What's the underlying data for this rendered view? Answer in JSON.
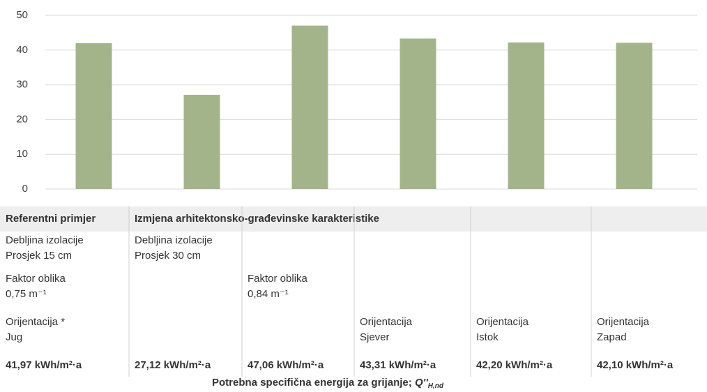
{
  "chart_data": {
    "type": "bar",
    "values": [
      41.97,
      27.12,
      47.06,
      43.31,
      42.2,
      42.1
    ],
    "value_labels": [
      "41,97 kWh/m²·a",
      "27,12 kWh/m²·a",
      "47,06 kWh/m²·a",
      "43,31 kWh/m²·a",
      "42,20 kWh/m²·a",
      "42,10 kWh/m²·a"
    ],
    "color": "#a3b48b",
    "ylim": [
      0,
      50
    ],
    "yticks": [
      0,
      10,
      20,
      30,
      40,
      50
    ],
    "grid": true
  },
  "table": {
    "header": [
      "Referentni primjer",
      "Izmjena arhitektonsko-građevinske karakteristike"
    ],
    "rows": [
      [
        [
          "Debljina izolacije",
          "Prosjek 15 cm"
        ],
        [
          "Debljina izolacije",
          "Prosjek 30 cm"
        ],
        null,
        null,
        null,
        null
      ],
      [
        [
          "Faktor oblika",
          "0,75 m⁻¹"
        ],
        null,
        [
          "Faktor oblika",
          "0,84 m⁻¹"
        ],
        null,
        null,
        null
      ],
      [
        [
          "Orijentacija *",
          "Jug"
        ],
        null,
        null,
        [
          "Orijentacija",
          "Sjever"
        ],
        [
          "Orijentacija",
          "Istok"
        ],
        [
          "Orijentacija",
          "Zapad"
        ]
      ]
    ],
    "caption": {
      "text": "Potrebna specifična energija za grijanje;",
      "symbol": "Q''",
      "subscript": "H,nd"
    }
  }
}
